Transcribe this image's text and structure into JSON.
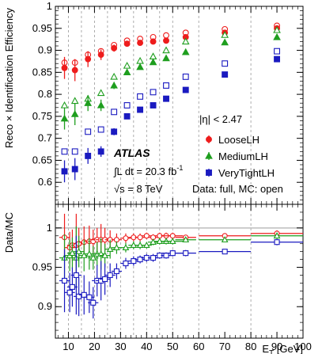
{
  "chart_data": [
    {
      "type": "scatter",
      "panel": "efficiency",
      "ylabel": "Reco × Identification Efficiency",
      "ylim": [
        0.55,
        1.0
      ],
      "xlim": [
        5,
        100
      ],
      "yticks": [
        "0.6",
        "0.65",
        "0.7",
        "0.75",
        "0.8",
        "0.85",
        "0.9",
        "0.95",
        "1"
      ],
      "grid": "dashed vertical lines at bin edges",
      "legend": "right",
      "eta_label": "|η| < 2.47",
      "atlas": "ATLAS",
      "lumi_line1": "∫L dt = 20.3 fb",
      "lumi_sup": "-1",
      "energy": "√s = 8 TeV",
      "data_note": "Data: full, MC: open",
      "series": [
        {
          "name": "LooseLH",
          "color": "#ee1c1c",
          "marker": "circle",
          "data_x": [
            8.5,
            12.5,
            17.5,
            22.5,
            27.5,
            32.5,
            37.5,
            42.5,
            47.5,
            55,
            70,
            90
          ],
          "data_y": [
            0.86,
            0.855,
            0.88,
            0.89,
            0.905,
            0.915,
            0.917,
            0.92,
            0.922,
            0.93,
            0.94,
            0.95
          ],
          "data_err": [
            0.025,
            0.025,
            0.018,
            0.012,
            0.008,
            0.006,
            0.005,
            0.004,
            0.004,
            0.003,
            0.003,
            0.004
          ],
          "mc_x": [
            8.5,
            12.5,
            17.5,
            22.5,
            27.5,
            32.5,
            37.5,
            42.5,
            47.5,
            55,
            70,
            90
          ],
          "mc_y": [
            0.872,
            0.872,
            0.89,
            0.898,
            0.912,
            0.922,
            0.926,
            0.93,
            0.934,
            0.94,
            0.948,
            0.956
          ]
        },
        {
          "name": "MediumLH",
          "color": "#1e9e1e",
          "marker": "triangle",
          "data_x": [
            8.5,
            12.5,
            17.5,
            22.5,
            27.5,
            32.5,
            37.5,
            42.5,
            47.5,
            55,
            70,
            90
          ],
          "data_y": [
            0.745,
            0.755,
            0.78,
            0.775,
            0.82,
            0.85,
            0.862,
            0.873,
            0.882,
            0.896,
            0.918,
            0.93
          ],
          "data_err": [
            0.025,
            0.025,
            0.018,
            0.013,
            0.008,
            0.006,
            0.005,
            0.004,
            0.004,
            0.003,
            0.003,
            0.004
          ],
          "mc_x": [
            8.5,
            12.5,
            17.5,
            22.5,
            27.5,
            32.5,
            37.5,
            42.5,
            47.5,
            55,
            70,
            90
          ],
          "mc_y": [
            0.775,
            0.785,
            0.79,
            0.803,
            0.84,
            0.865,
            0.876,
            0.886,
            0.9,
            0.92,
            0.935,
            0.946
          ]
        },
        {
          "name": "VeryTightLH",
          "color": "#1a1ac0",
          "marker": "square",
          "data_x": [
            8.5,
            12.5,
            17.5,
            22.5,
            27.5,
            32.5,
            37.5,
            42.5,
            47.5,
            55,
            70,
            90
          ],
          "data_y": [
            0.625,
            0.63,
            0.66,
            0.67,
            0.715,
            0.75,
            0.765,
            0.775,
            0.79,
            0.81,
            0.845,
            0.88
          ],
          "data_err": [
            0.025,
            0.025,
            0.018,
            0.012,
            0.008,
            0.006,
            0.005,
            0.004,
            0.004,
            0.003,
            0.003,
            0.004
          ],
          "mc_x": [
            8.5,
            12.5,
            17.5,
            22.5,
            27.5,
            32.5,
            37.5,
            42.5,
            47.5,
            55,
            70,
            90
          ],
          "mc_y": [
            0.67,
            0.67,
            0.715,
            0.72,
            0.76,
            0.775,
            0.795,
            0.805,
            0.82,
            0.84,
            0.87,
            0.898
          ]
        }
      ]
    },
    {
      "type": "scatter",
      "panel": "ratio",
      "ylabel": "Data/MC",
      "xlabel": "E",
      "xlabel_sub": "T",
      "xlabel_unit": " [GeV]",
      "ylim": [
        0.86,
        1.03
      ],
      "xlim": [
        5,
        100
      ],
      "yticks": [
        "0.9",
        "0.95",
        "1"
      ],
      "xticks": [
        "10",
        "20",
        "30",
        "40",
        "50",
        "60",
        "70",
        "80",
        "90",
        "100"
      ],
      "grid": "dashed vertical lines at bin edges",
      "bin_edges": [
        7,
        10,
        15,
        20,
        25,
        30,
        35,
        40,
        45,
        50,
        60,
        80,
        100
      ],
      "series": [
        {
          "name": "LooseLH",
          "color": "#ee1c1c",
          "marker": "circle",
          "x": [
            8.5,
            10.5,
            11.5,
            13,
            14,
            16,
            18,
            19.5,
            21,
            22.5,
            24,
            26,
            28.5,
            32,
            35,
            37.5,
            40,
            42.5,
            45,
            47.5,
            50,
            55,
            70,
            90
          ],
          "y": [
            0.988,
            0.975,
            0.978,
            0.978,
            0.98,
            0.982,
            0.983,
            0.983,
            0.985,
            0.985,
            0.985,
            0.985,
            0.985,
            0.987,
            0.988,
            0.988,
            0.99,
            0.988,
            0.99,
            0.99,
            0.99,
            0.988,
            0.99,
            0.993
          ],
          "err": [
            0.03,
            0.02,
            0.02,
            0.04,
            0.02,
            0.02,
            0.02,
            0.015,
            0.015,
            0.02,
            0.015,
            0.012,
            0.008,
            0.006,
            0.005,
            0.005,
            0.004,
            0.004,
            0.004,
            0.004,
            0.004,
            0.003,
            0.003,
            0.004
          ]
        },
        {
          "name": "MediumLH",
          "color": "#1e9e1e",
          "marker": "triangle",
          "x": [
            8.5,
            10.5,
            11.5,
            13,
            14,
            16,
            18,
            19.5,
            21,
            22.5,
            24,
            26,
            28.5,
            32,
            35,
            37.5,
            40,
            42.5,
            45,
            47.5,
            50,
            55,
            70,
            90
          ],
          "y": [
            0.962,
            0.965,
            0.968,
            0.962,
            0.97,
            0.965,
            0.967,
            0.962,
            0.967,
            0.967,
            0.965,
            0.973,
            0.975,
            0.975,
            0.978,
            0.978,
            0.978,
            0.982,
            0.983,
            0.983,
            0.983,
            0.985,
            0.985,
            0.99
          ],
          "err": [
            0.03,
            0.02,
            0.02,
            0.04,
            0.02,
            0.02,
            0.02,
            0.015,
            0.015,
            0.02,
            0.015,
            0.012,
            0.008,
            0.006,
            0.005,
            0.005,
            0.004,
            0.004,
            0.004,
            0.004,
            0.004,
            0.003,
            0.003,
            0.004
          ]
        },
        {
          "name": "VeryTightLH",
          "color": "#1a1ac0",
          "marker": "square",
          "x": [
            8.5,
            10.5,
            11.5,
            13,
            14,
            16,
            18,
            19.5,
            21,
            22.5,
            24,
            26,
            28.5,
            32,
            35,
            37.5,
            40,
            42.5,
            45,
            47.5,
            50,
            55,
            70,
            90
          ],
          "y": [
            0.933,
            0.918,
            0.925,
            0.94,
            0.913,
            0.915,
            0.912,
            0.905,
            0.933,
            0.933,
            0.935,
            0.94,
            0.945,
            0.955,
            0.958,
            0.96,
            0.962,
            0.962,
            0.965,
            0.965,
            0.968,
            0.968,
            0.97,
            0.982
          ],
          "err": [
            0.04,
            0.025,
            0.025,
            0.05,
            0.025,
            0.025,
            0.02,
            0.02,
            0.02,
            0.025,
            0.02,
            0.015,
            0.01,
            0.007,
            0.006,
            0.005,
            0.005,
            0.005,
            0.004,
            0.004,
            0.004,
            0.004,
            0.003,
            0.004
          ]
        }
      ]
    }
  ]
}
